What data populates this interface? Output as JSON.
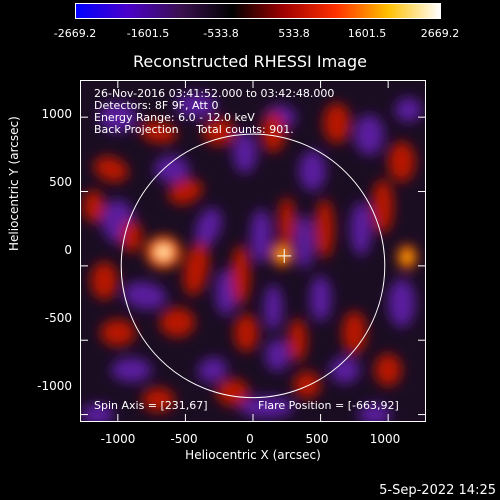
{
  "colorbar": {
    "ticks": [
      "-2669.2",
      "-1601.5",
      "-533.8",
      "533.8",
      "1601.5",
      "2669.2"
    ],
    "tick_values": [
      -2669.2,
      -1601.5,
      -533.8,
      533.8,
      1601.5,
      2669.2
    ],
    "range": [
      -2669.2,
      2669.2
    ]
  },
  "image": {
    "title": "Reconstructed RHESSI Image",
    "info_lines": [
      "26-Nov-2016 03:41:52.000 to 03:42:48.000",
      "Detectors: 8F 9F, Att 0",
      "Energy Range: 6.0 - 12.0 keV",
      "Back Projection     Total counts: 901."
    ],
    "spin_axis": "Spin Axis = [231,67]",
    "flare_position": "Flare Position = [-663,92]"
  },
  "chart_data": {
    "type": "heatmap",
    "title": "Reconstructed RHESSI Image",
    "xlabel": "Heliocentric X (arcsec)",
    "ylabel": "Heliocentric Y (arcsec)",
    "xlim": [
      -1280,
      1280
    ],
    "ylim": [
      -1050,
      1250
    ],
    "xticks": [
      "-1000",
      "-500",
      "0",
      "500",
      "1000"
    ],
    "yticks": [
      "1000",
      "500",
      "0",
      "-500",
      "-1000"
    ],
    "xtick_values": [
      -1000,
      -500,
      0,
      500,
      1000
    ],
    "ytick_values": [
      1000,
      500,
      0,
      -500,
      -1000
    ],
    "solar_limb_radius_arcsec": 975,
    "spin_axis_marker": [
      231,
      67
    ],
    "peak_sources": [
      {
        "x": -663,
        "y": 92,
        "level": "max"
      },
      {
        "x": 215,
        "y": 75,
        "level": "high"
      },
      {
        "x": 1140,
        "y": 60,
        "level": "high"
      }
    ],
    "colorbar_range": [
      -2669.2,
      2669.2
    ],
    "colormap": [
      "#0000ff",
      "#4a00c8",
      "#3a1050",
      "#000000",
      "#a00000",
      "#ff3000",
      "#ffc000",
      "#ffffff"
    ]
  },
  "footer": {
    "datestamp": "5-Sep-2022 14:25"
  }
}
